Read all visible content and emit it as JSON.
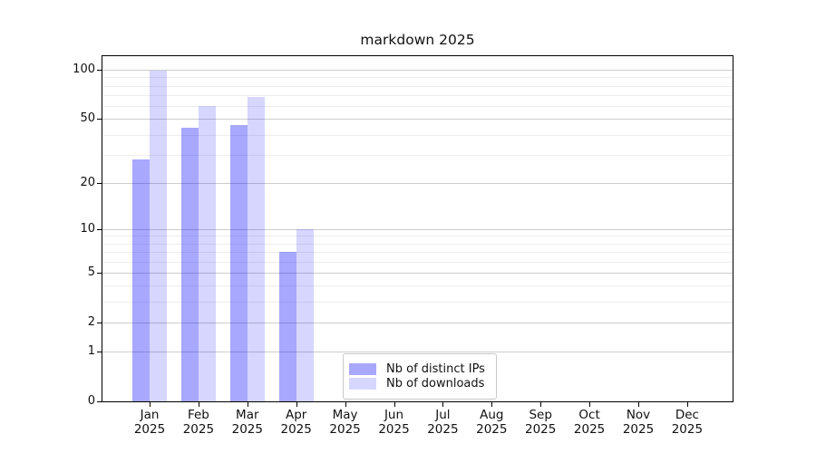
{
  "chart_data": {
    "type": "bar",
    "title": "markdown 2025",
    "xlabel": "",
    "ylabel": "",
    "categories": [
      "Jan 2025",
      "Feb 2025",
      "Mar 2025",
      "Apr 2025",
      "May 2025",
      "Jun 2025",
      "Jul 2025",
      "Aug 2025",
      "Sep 2025",
      "Oct 2025",
      "Nov 2025",
      "Dec 2025"
    ],
    "series": [
      {
        "name": "Nb of distinct IPs",
        "fill": "rgba(0,0,255,0.34)",
        "fill_hex_on_white": "#a8a8ff",
        "values": [
          28,
          44,
          46,
          7,
          0,
          0,
          0,
          0,
          0,
          0,
          0,
          0
        ]
      },
      {
        "name": "Nb of downloads",
        "fill": "rgba(0,0,255,0.16)",
        "fill_hex_on_white": "#d6d6ff",
        "values": [
          99,
          60,
          68,
          10,
          0,
          0,
          0,
          0,
          0,
          0,
          0,
          0
        ]
      }
    ],
    "y_axis": {
      "scale": "log10(1+y)",
      "major_ticks": [
        0,
        1,
        2,
        5,
        10,
        20,
        50,
        100
      ],
      "minor_ticks": [
        3,
        4,
        6,
        7,
        8,
        9,
        30,
        40,
        60,
        70,
        80,
        90
      ],
      "ylim": [
        0,
        122
      ]
    },
    "grid": true,
    "legend_position": "lower center, inside axes",
    "colors": {
      "grid_major": "#cdcdcd",
      "grid_minor": "#ededed",
      "axis_frame": "#000000",
      "text": "#111111"
    }
  }
}
